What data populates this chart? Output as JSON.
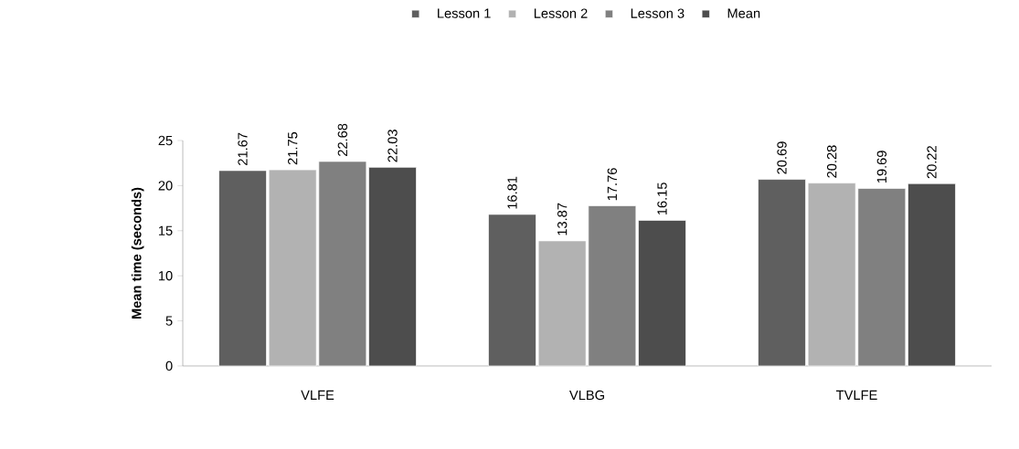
{
  "chart_data": {
    "type": "bar",
    "ylabel": "Mean time (seconds)",
    "categories": [
      "VLFE",
      "VLBG",
      "TVLFE"
    ],
    "series": [
      {
        "name": "Lesson 1",
        "color": "#5f5f5f",
        "values": [
          21.67,
          16.81,
          20.69
        ]
      },
      {
        "name": "Lesson 2",
        "color": "#b2b2b2",
        "values": [
          21.75,
          13.87,
          20.28
        ]
      },
      {
        "name": "Lesson 3",
        "color": "#808080",
        "values": [
          22.68,
          17.76,
          19.69
        ]
      },
      {
        "name": "Mean",
        "color": "#4d4d4d",
        "values": [
          22.03,
          16.15,
          20.22
        ]
      }
    ],
    "ylim": [
      0,
      25
    ],
    "yticks": [
      0,
      5,
      10,
      15,
      20,
      25
    ],
    "data_labels": true,
    "legend": "top",
    "grid": false
  }
}
